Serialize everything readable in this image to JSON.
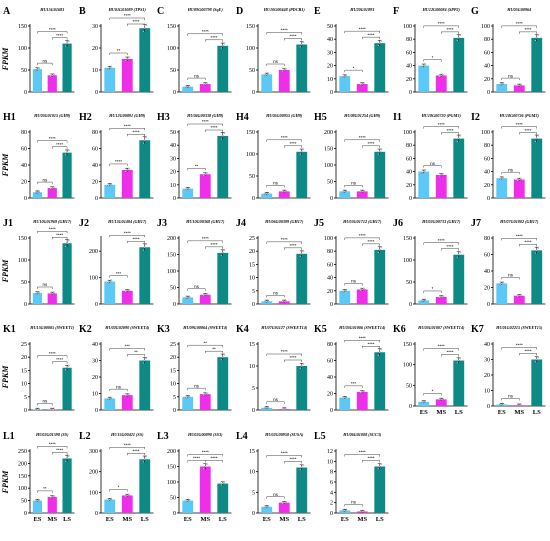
{
  "chart_data": {
    "type": "bar",
    "ylabel": "FPKM",
    "categories": [
      "ES",
      "MS",
      "LS"
    ],
    "colors": [
      "#5bc8f5",
      "#ee2ee8",
      "#0e8a86"
    ],
    "panels": [
      {
        "id": "A",
        "gene": "HU15G01683",
        "values": [
          52,
          38,
          110
        ],
        "ylim": [
          0,
          150
        ],
        "yticks": [
          0,
          50,
          100,
          150
        ],
        "sig": [
          "ns",
          "****",
          "****"
        ]
      },
      {
        "id": "B",
        "gene": "HU01G01089 (TPS1)",
        "values": [
          11,
          15,
          29
        ],
        "ylim": [
          0,
          30
        ],
        "yticks": [
          0,
          10,
          20,
          30
        ],
        "sig": [
          "**",
          "****",
          "****"
        ]
      },
      {
        "id": "C",
        "gene": "HU09G00798 (SqE)",
        "values": [
          12,
          18,
          105
        ],
        "ylim": [
          0,
          150
        ],
        "yticks": [
          0,
          50,
          100,
          150
        ],
        "sig": [
          "ns",
          "****",
          "****"
        ]
      },
      {
        "id": "D",
        "gene": "HU10G00448 (PDCR1)",
        "values": [
          40,
          50,
          108
        ],
        "ylim": [
          0,
          150
        ],
        "yticks": [
          0,
          50,
          100,
          150
        ],
        "sig": [
          "ns",
          "****",
          "****"
        ]
      },
      {
        "id": "E",
        "gene": "HU20G01893",
        "values": [
          12,
          6,
          37
        ],
        "ylim": [
          0,
          50
        ],
        "yticks": [
          0,
          10,
          20,
          30,
          40,
          50
        ],
        "sig": [
          "*",
          "****",
          "****"
        ]
      },
      {
        "id": "F",
        "gene": "HU12G00084 (SPP2)",
        "values": [
          40,
          25,
          82
        ],
        "ylim": [
          0,
          100
        ],
        "yticks": [
          0,
          20,
          40,
          60,
          80,
          100
        ],
        "sig": [
          "*",
          "****",
          "****"
        ]
      },
      {
        "id": "G",
        "gene": "HU05G00964",
        "values": [
          12,
          10,
          82
        ],
        "ylim": [
          0,
          100
        ],
        "yticks": [
          0,
          20,
          40,
          60,
          80,
          100
        ],
        "sig": [
          "ns",
          "****",
          "****"
        ]
      },
      {
        "id": "H1",
        "gene": "HU03G01015 (GH9)",
        "values": [
          7,
          12,
          55
        ],
        "ylim": [
          0,
          80
        ],
        "yticks": [
          0,
          20,
          40,
          60,
          80
        ],
        "sig": [
          "ns",
          "****",
          "****"
        ]
      },
      {
        "id": "H2",
        "gene": "HU12G00891 (GH9)",
        "values": [
          16,
          34,
          70
        ],
        "ylim": [
          0,
          80
        ],
        "yticks": [
          0,
          20,
          40,
          60,
          80
        ],
        "sig": [
          "****",
          "****",
          "****"
        ]
      },
      {
        "id": "H3",
        "gene": "HU04G00338 (GH9)",
        "values": [
          7,
          18,
          47
        ],
        "ylim": [
          0,
          50
        ],
        "yticks": [
          0,
          10,
          20,
          30,
          40,
          50
        ],
        "sig": [
          "**",
          "****",
          "****"
        ]
      },
      {
        "id": "H4",
        "gene": "HU05G00955 (GH9)",
        "values": [
          10,
          15,
          105
        ],
        "ylim": [
          0,
          150
        ],
        "yticks": [
          0,
          50,
          100,
          150
        ],
        "sig": [
          "ns",
          "****",
          "****"
        ]
      },
      {
        "id": "H5",
        "gene": "HU08G01254 (GH9)",
        "values": [
          20,
          20,
          140
        ],
        "ylim": [
          0,
          200
        ],
        "yticks": [
          0,
          50,
          100,
          150,
          200
        ],
        "sig": [
          "ns",
          "****",
          "****"
        ]
      },
      {
        "id": "I1",
        "gene": "HU18G00720 (PGM3)",
        "values": [
          40,
          35,
          90
        ],
        "ylim": [
          0,
          100
        ],
        "yticks": [
          0,
          20,
          40,
          60,
          80,
          100
        ],
        "sig": [
          "ns",
          "****",
          "****"
        ]
      },
      {
        "id": "I2",
        "gene": "HU18G00736 (PGM3)",
        "values": [
          30,
          28,
          90
        ],
        "ylim": [
          0,
          100
        ],
        "yticks": [
          0,
          20,
          40,
          60,
          80,
          100
        ],
        "sig": [
          "ns",
          "****",
          "****"
        ]
      },
      {
        "id": "J1",
        "gene": "HU10G01969 (GH17)",
        "values": [
          25,
          24,
          138
        ],
        "ylim": [
          0,
          150
        ],
        "yticks": [
          0,
          50,
          100,
          150
        ],
        "sig": [
          "ns",
          "****",
          "****"
        ]
      },
      {
        "id": "J2",
        "gene": "HU13G01484 (GH17)",
        "values": [
          85,
          50,
          215
        ],
        "ylim": [
          0,
          250
        ],
        "yticks": [
          0,
          100,
          200
        ],
        "sig": [
          "***",
          "****",
          "****"
        ]
      },
      {
        "id": "J3",
        "gene": "HU10G00368 (GH17)",
        "values": [
          20,
          28,
          155
        ],
        "ylim": [
          0,
          200
        ],
        "yticks": [
          0,
          50,
          100,
          150,
          200
        ],
        "sig": [
          "ns",
          "****",
          "****"
        ]
      },
      {
        "id": "J4",
        "gene": "HU06G00399 (GH17)",
        "values": [
          1,
          1,
          19
        ],
        "ylim": [
          0,
          25
        ],
        "yticks": [
          0,
          5,
          10,
          15,
          20,
          25
        ],
        "sig": [
          "ns",
          "****",
          "****"
        ]
      },
      {
        "id": "J5",
        "gene": "HU03G01712 (GH17)",
        "values": [
          20,
          22,
          82
        ],
        "ylim": [
          0,
          100
        ],
        "yticks": [
          0,
          20,
          40,
          60,
          80,
          100
        ],
        "sig": [
          "ns",
          "****",
          "****"
        ]
      },
      {
        "id": "J6",
        "gene": "HU02G00733 (GH17)",
        "values": [
          8,
          16,
          112
        ],
        "ylim": [
          0,
          150
        ],
        "yticks": [
          0,
          50,
          100,
          150
        ],
        "sig": [
          "*",
          "****",
          "****"
        ]
      },
      {
        "id": "J7",
        "gene": "HU07G01802 (GH17)",
        "values": [
          25,
          10,
          65
        ],
        "ylim": [
          0,
          80
        ],
        "yticks": [
          0,
          20,
          40,
          60,
          80
        ],
        "sig": [
          "ns",
          "****",
          "****"
        ]
      },
      {
        "id": "K1",
        "gene": "HU15G00005 (SWEET1)",
        "values": [
          0.2,
          0.2,
          16
        ],
        "ylim": [
          0,
          25
        ],
        "yticks": [
          0,
          5,
          10,
          15,
          20,
          25
        ],
        "sig": [
          "ns",
          "****",
          "****"
        ]
      },
      {
        "id": "K2",
        "gene": "HU02G02090 (SWEET4)",
        "values": [
          7,
          9,
          30
        ],
        "ylim": [
          0,
          40
        ],
        "yticks": [
          0,
          10,
          20,
          30,
          40
        ],
        "sig": [
          "ns",
          "**",
          "***"
        ]
      },
      {
        "id": "K3",
        "gene": "HU09G00864 (SWEET4)",
        "values": [
          5,
          6,
          20
        ],
        "ylim": [
          0,
          25
        ],
        "yticks": [
          0,
          5,
          10,
          15,
          20,
          25
        ],
        "sig": [
          "ns",
          "**",
          "**"
        ]
      },
      {
        "id": "K4",
        "gene": "HU07G01127 (SWEET14)",
        "values": [
          0.5,
          0.2,
          10
        ],
        "ylim": [
          0,
          15
        ],
        "yticks": [
          0,
          5,
          10,
          15
        ],
        "sig": [
          "ns",
          "****",
          "****"
        ]
      },
      {
        "id": "K5",
        "gene": "HU03G01006 (SWEET14)",
        "values": [
          15,
          22,
          70
        ],
        "ylim": [
          0,
          80
        ],
        "yticks": [
          0,
          20,
          40,
          60,
          80
        ],
        "sig": [
          "***",
          "****",
          "****"
        ]
      },
      {
        "id": "K6",
        "gene": "HU03G01007 (SWEET14)",
        "values": [
          10,
          16,
          110
        ],
        "ylim": [
          0,
          150
        ],
        "yticks": [
          0,
          50,
          100,
          150
        ],
        "sig": [
          "*",
          "****",
          "****"
        ]
      },
      {
        "id": "K7",
        "gene": "HU01G02215 (SWEET15)",
        "values": [
          1,
          0.5,
          30
        ],
        "ylim": [
          0,
          40
        ],
        "yticks": [
          0,
          10,
          20,
          30,
          40
        ],
        "sig": [
          "ns",
          "****",
          "****"
        ]
      },
      {
        "id": "L1",
        "gene": "HU02G01598 (SS)",
        "values": [
          50,
          65,
          220
        ],
        "ylim": [
          0,
          250
        ],
        "yticks": [
          0,
          50,
          100,
          150,
          200,
          250
        ],
        "sig": [
          "**",
          "****",
          "****"
        ]
      },
      {
        "id": "L2",
        "gene": "HU15G00421 (SS)",
        "values": [
          65,
          85,
          260
        ],
        "ylim": [
          0,
          300
        ],
        "yticks": [
          0,
          100,
          200,
          300
        ],
        "sig": [
          "*",
          "****",
          "****"
        ]
      },
      {
        "id": "L3",
        "gene": "HU02G00890 (SS3)",
        "values": [
          40,
          150,
          95
        ],
        "ylim": [
          0,
          200
        ],
        "yticks": [
          0,
          50,
          100,
          150,
          200
        ],
        "sig": [
          "****",
          "****",
          "****"
        ]
      },
      {
        "id": "L4",
        "gene": "HU02G00958 (SUSA)",
        "values": [
          1.5,
          2.5,
          11
        ],
        "ylim": [
          0,
          15
        ],
        "yticks": [
          0,
          5,
          10,
          15
        ],
        "sig": [
          "ns",
          "****",
          "****"
        ]
      },
      {
        "id": "L5",
        "gene": "HU06G01008 (SUC3)",
        "values": [
          0.5,
          0.3,
          9
        ],
        "ylim": [
          0,
          12
        ],
        "yticks": [
          0,
          2,
          4,
          6,
          8,
          10,
          12
        ],
        "sig": [
          "ns",
          "****",
          "****"
        ]
      }
    ]
  }
}
